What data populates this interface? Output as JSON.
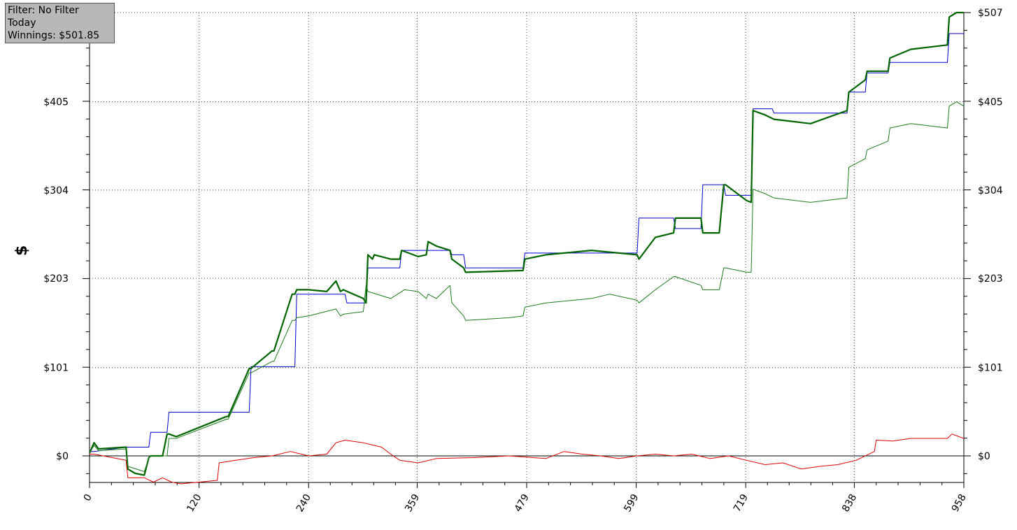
{
  "info_box": {
    "filter": "Filter: No Filter",
    "period": "Today",
    "winnings": "Winnings: $501.85"
  },
  "chart_data": {
    "type": "line",
    "ylabel": "$",
    "xlim": [
      0,
      958
    ],
    "ylim": [
      -31,
      507
    ],
    "y_ticks": [
      0,
      101,
      203,
      304,
      405,
      507
    ],
    "y_tick_labels": [
      "$0",
      "$101",
      "$203",
      "$304",
      "$405",
      "$507"
    ],
    "x_ticks": [
      0,
      120,
      240,
      359,
      479,
      599,
      719,
      838,
      958
    ],
    "x_tick_labels": [
      "0",
      "120",
      "240",
      "359",
      "479",
      "599",
      "719",
      "838",
      "958"
    ],
    "grid": true,
    "colors": {
      "blue": "#0000cc",
      "dark_green": "#006400",
      "green": "#1e7b1e",
      "red": "#dd0000"
    },
    "series": [
      {
        "color": "#0000cc",
        "x": [
          0,
          5,
          40,
          42,
          65,
          67,
          85,
          87,
          175,
          177,
          225,
          227,
          280,
          282,
          303,
          305,
          310,
          312,
          340,
          342,
          369,
          371,
          395,
          397,
          410,
          412,
          475,
          477,
          550,
          552,
          600,
          602,
          640,
          642,
          670,
          672,
          695,
          697,
          725,
          727,
          748,
          750,
          830,
          832,
          850,
          852,
          875,
          877,
          940,
          942,
          958
        ],
        "y": [
          5,
          5,
          10,
          10,
          10,
          27,
          27,
          50,
          50,
          102,
          102,
          185,
          185,
          175,
          175,
          215,
          215,
          215,
          215,
          235,
          235,
          235,
          235,
          230,
          230,
          215,
          215,
          232,
          232,
          232,
          232,
          272,
          272,
          260,
          260,
          310,
          310,
          298,
          298,
          397,
          397,
          392,
          392,
          416,
          416,
          438,
          438,
          450,
          450,
          483,
          483
        ]
      },
      {
        "color": "#006400",
        "x": [
          0,
          5,
          10,
          40,
          42,
          50,
          60,
          65,
          67,
          80,
          85,
          87,
          95,
          150,
          152,
          175,
          177,
          200,
          202,
          222,
          225,
          227,
          240,
          260,
          270,
          275,
          278,
          300,
          303,
          305,
          310,
          312,
          330,
          340,
          342,
          360,
          369,
          371,
          380,
          395,
          397,
          410,
          412,
          475,
          477,
          500,
          550,
          600,
          602,
          620,
          640,
          642,
          670,
          672,
          690,
          695,
          697,
          720,
          725,
          727,
          740,
          750,
          790,
          830,
          832,
          850,
          852,
          875,
          877,
          900,
          940,
          942,
          950,
          958
        ],
        "y": [
          3,
          15,
          8,
          10,
          -15,
          -20,
          -22,
          -2,
          0,
          0,
          25,
          25,
          22,
          45,
          45,
          100,
          100,
          120,
          120,
          185,
          185,
          190,
          190,
          188,
          200,
          188,
          190,
          180,
          175,
          230,
          225,
          230,
          225,
          225,
          235,
          228,
          230,
          245,
          240,
          235,
          225,
          215,
          210,
          212,
          225,
          230,
          235,
          230,
          225,
          250,
          255,
          272,
          272,
          255,
          255,
          310,
          310,
          292,
          290,
          395,
          390,
          385,
          380,
          395,
          416,
          430,
          440,
          440,
          455,
          465,
          470,
          502,
          507,
          507
        ]
      },
      {
        "color": "#1e7b1e",
        "x": [
          0,
          5,
          10,
          40,
          42,
          60,
          65,
          67,
          85,
          87,
          95,
          150,
          152,
          175,
          177,
          200,
          202,
          222,
          225,
          227,
          240,
          270,
          275,
          278,
          300,
          303,
          305,
          330,
          345,
          360,
          369,
          371,
          380,
          395,
          397,
          410,
          412,
          460,
          475,
          477,
          500,
          550,
          570,
          600,
          602,
          620,
          640,
          642,
          670,
          672,
          690,
          695,
          697,
          720,
          725,
          727,
          740,
          750,
          790,
          830,
          832,
          850,
          852,
          875,
          877,
          900,
          940,
          942,
          950,
          958
        ],
        "y": [
          3,
          12,
          6,
          8,
          -12,
          -18,
          -2,
          0,
          0,
          20,
          20,
          42,
          42,
          95,
          95,
          108,
          108,
          155,
          155,
          158,
          160,
          168,
          160,
          162,
          165,
          195,
          188,
          180,
          190,
          188,
          180,
          185,
          180,
          195,
          175,
          160,
          155,
          158,
          160,
          170,
          175,
          180,
          185,
          178,
          175,
          190,
          205,
          205,
          195,
          190,
          190,
          215,
          215,
          210,
          210,
          305,
          300,
          295,
          290,
          295,
          330,
          340,
          350,
          360,
          375,
          380,
          375,
          400,
          405,
          400
        ]
      },
      {
        "color": "#dd0000",
        "x": [
          0,
          5,
          40,
          42,
          60,
          70,
          80,
          90,
          100,
          120,
          140,
          142,
          160,
          180,
          200,
          220,
          240,
          260,
          270,
          280,
          300,
          320,
          330,
          340,
          360,
          380,
          420,
          460,
          500,
          520,
          540,
          560,
          580,
          600,
          620,
          640,
          660,
          680,
          700,
          720,
          740,
          760,
          780,
          800,
          820,
          840,
          860,
          862,
          880,
          900,
          920,
          940,
          945,
          958
        ],
        "y": [
          2,
          2,
          -5,
          -25,
          -25,
          -30,
          -25,
          -30,
          -32,
          -30,
          -28,
          -8,
          -5,
          -2,
          0,
          5,
          0,
          2,
          15,
          18,
          15,
          10,
          2,
          -5,
          -8,
          -3,
          -2,
          0,
          -3,
          5,
          2,
          0,
          -3,
          0,
          2,
          0,
          2,
          -3,
          0,
          -5,
          -10,
          -8,
          -15,
          -12,
          -10,
          -5,
          5,
          18,
          17,
          20,
          20,
          20,
          25,
          20
        ]
      }
    ]
  }
}
